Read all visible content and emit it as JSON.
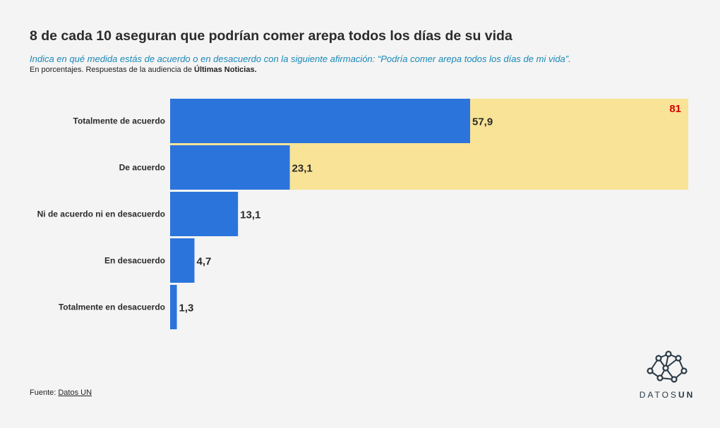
{
  "header": {
    "title": "8 de cada 10 aseguran que podrían comer arepa todos los días de su vida",
    "subtitle": "Indica en qué medida estás de acuerdo o en desacuerdo con la siguiente afirmación: “Podría comer arepa todos los días de mi vida”.",
    "note_prefix": "En porcentajes. Respuestas de la audiencia de ",
    "note_bold": "Últimas Noticias."
  },
  "footer": {
    "source_prefix": "Fuente: ",
    "source_link": "Datos UN"
  },
  "logo": {
    "text_light": "DATOS",
    "text_bold": "UN",
    "icon": "network-nodes-icon"
  },
  "colors": {
    "bar": "#2b74dc",
    "highlight_band": "#f9e396",
    "highlight_label": "#d40000",
    "background": "#f4f4f4"
  },
  "chart_data": {
    "type": "bar",
    "orientation": "horizontal",
    "categories": [
      "Totalmente de acuerdo",
      "De acuerdo",
      "Ni de acuerdo ni en desacuerdo",
      "En desacuerdo",
      "Totalmente en desacuerdo"
    ],
    "values": [
      57.9,
      23.1,
      13.1,
      4.7,
      1.3
    ],
    "value_labels": [
      "57,9",
      "23,1",
      "13,1",
      "4,7",
      "1,3"
    ],
    "xlim": [
      0,
      100
    ],
    "grid": false,
    "highlight": {
      "categories": [
        "Totalmente de acuerdo",
        "De acuerdo"
      ],
      "value": 81,
      "label": "81"
    }
  }
}
